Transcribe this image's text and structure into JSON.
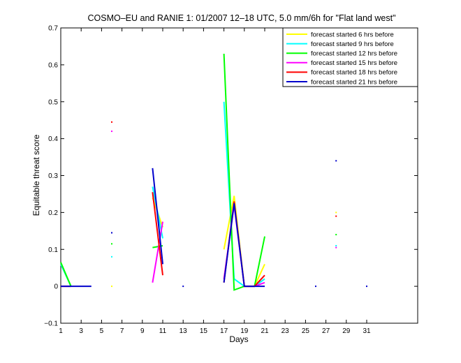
{
  "chart_data": {
    "type": "line",
    "title": "COSMO–EU and RANIE 1: 01/2007 12–18 UTC, 5.0 mm/6h for \"Flat land west\"",
    "xlabel": "Days",
    "ylabel": "Equitable threat score",
    "xlim": [
      1,
      36
    ],
    "ylim": [
      -0.1,
      0.7
    ],
    "x_ticks": [
      1,
      3,
      5,
      7,
      9,
      11,
      13,
      15,
      17,
      19,
      21,
      23,
      25,
      27,
      29,
      31
    ],
    "y_ticks": [
      -0.1,
      0,
      0.1,
      0.2,
      0.3,
      0.4,
      0.5,
      0.6,
      0.7
    ],
    "y_tick_labels": [
      "−0.1",
      "0",
      "0.1",
      "0.2",
      "0.3",
      "0.4",
      "0.5",
      "0.6",
      "0.7"
    ],
    "grid": false,
    "legend_position": "top-right",
    "series": [
      {
        "name": "forecast started 6 hrs before",
        "color": "#ffff00",
        "points": [
          [
            1,
            0.06
          ],
          [
            2,
            0
          ],
          [
            6,
            0
          ],
          [
            10,
            0.24
          ],
          [
            11,
            0.16
          ],
          [
            17,
            0.1
          ],
          [
            18,
            0.245
          ],
          [
            19,
            0
          ],
          [
            20,
            0
          ],
          [
            21,
            0.06
          ],
          [
            28,
            0.2
          ]
        ]
      },
      {
        "name": "forecast started 9 hrs before",
        "color": "#00ffff",
        "points": [
          [
            1,
            0.06
          ],
          [
            2,
            0
          ],
          [
            6,
            0.08
          ],
          [
            10,
            0.27
          ],
          [
            11,
            0.13
          ],
          [
            17,
            0.5
          ],
          [
            18,
            0.02
          ],
          [
            19,
            0
          ],
          [
            20,
            0
          ],
          [
            21,
            0.02
          ],
          [
            28,
            0.11
          ]
        ]
      },
      {
        "name": "forecast started 12 hrs before",
        "color": "#00ff00",
        "points": [
          [
            1,
            0.065
          ],
          [
            2,
            0
          ],
          [
            6,
            0.115
          ],
          [
            10,
            0.105
          ],
          [
            11,
            0.11
          ],
          [
            17,
            0.63
          ],
          [
            18,
            -0.01
          ],
          [
            19,
            0
          ],
          [
            20,
            0
          ],
          [
            21,
            0.135
          ],
          [
            28,
            0.14
          ]
        ]
      },
      {
        "name": "forecast started 15 hrs before",
        "color": "#ff00ff",
        "points": [
          [
            1,
            0
          ],
          [
            2,
            0
          ],
          [
            6,
            0.42
          ],
          [
            10,
            0.01
          ],
          [
            11,
            0.175
          ],
          [
            17,
            0.02
          ],
          [
            18,
            0.22
          ],
          [
            19,
            0
          ],
          [
            20,
            0
          ],
          [
            21,
            0.01
          ],
          [
            28,
            0.105
          ]
        ]
      },
      {
        "name": "forecast started 18 hrs before",
        "color": "#ff0000",
        "points": [
          [
            1,
            0
          ],
          [
            2,
            0
          ],
          [
            6,
            0.445
          ],
          [
            10,
            0.255
          ],
          [
            11,
            0.03
          ],
          [
            17,
            0.01
          ],
          [
            18,
            0.23
          ],
          [
            19,
            0
          ],
          [
            20,
            0
          ],
          [
            21,
            0.03
          ],
          [
            28,
            0.19
          ]
        ]
      },
      {
        "name": "forecast started 21 hrs before",
        "color": "#0000cc",
        "points": [
          [
            1,
            0
          ],
          [
            2,
            0
          ],
          [
            3,
            0
          ],
          [
            4,
            0
          ],
          [
            6,
            0.145
          ],
          [
            10,
            0.32
          ],
          [
            11,
            0.06
          ],
          [
            13,
            0
          ],
          [
            17,
            0.01
          ],
          [
            18,
            0.225
          ],
          [
            19,
            0
          ],
          [
            20,
            0
          ],
          [
            21,
            0
          ],
          [
            26,
            0
          ],
          [
            28,
            0.34
          ],
          [
            31,
            0
          ]
        ]
      }
    ]
  }
}
